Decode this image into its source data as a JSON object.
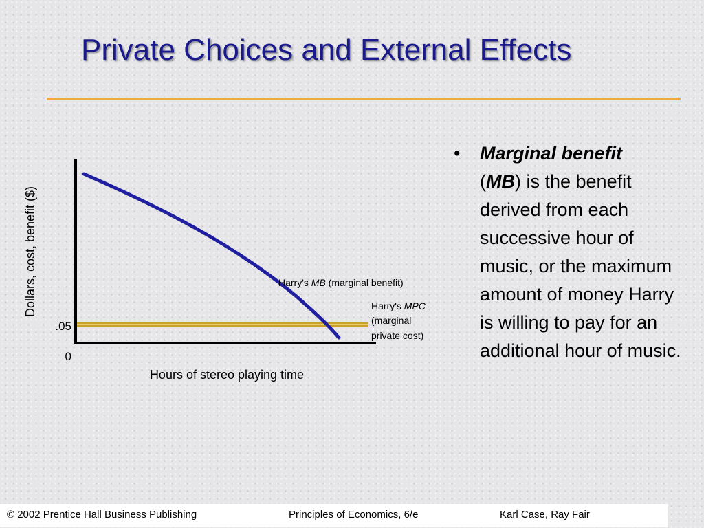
{
  "slide": {
    "title": "Private Choices and External Effects"
  },
  "chart_data": {
    "type": "line",
    "y_label": "Dollars, cost, benefit ($)",
    "x_label": "Hours of stereo playing time",
    "y_ticks": [
      ".05",
      "0"
    ],
    "series": [
      {
        "name_prefix": "Harry's ",
        "name_italic": "MB",
        "name_suffix": " (marginal benefit)",
        "shape": "downward-sloping curve",
        "color": "#1f1fa0"
      },
      {
        "name_prefix": "Harry's ",
        "name_italic": "MPC",
        "name_line2": "(marginal",
        "name_line3": "private cost)",
        "value": 0.05,
        "shape": "horizontal line",
        "color": "#c9a227"
      }
    ],
    "intersection": "MB crosses MPC at .05"
  },
  "bullet": {
    "marker": "•",
    "term": "Marginal benefit",
    "open_paren": "(",
    "abbrev": "MB",
    "rest": ") is the benefit derived from each successive hour of music, or the maximum amount of money Harry is willing to pay for an additional hour of music."
  },
  "footer": {
    "copyright": "© 2002 Prentice Hall Business Publishing",
    "book": "Principles of Economics, 6/e",
    "authors": "Karl Case, Ray Fair"
  }
}
